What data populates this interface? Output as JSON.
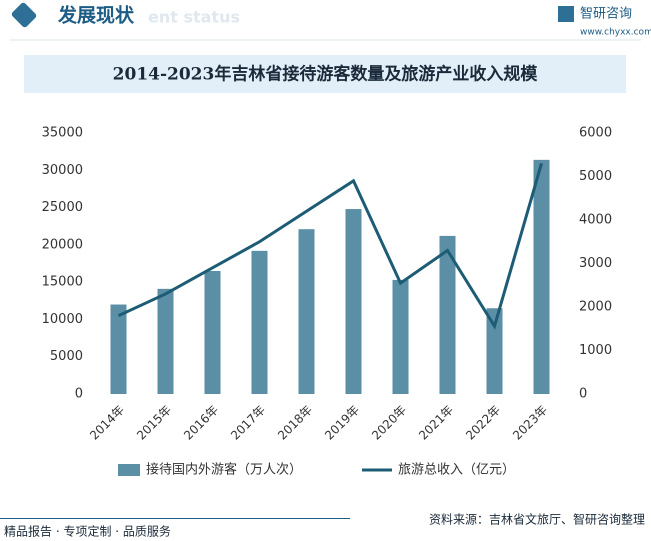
{
  "header": {
    "title": "发展现状",
    "subtitle": "ent status",
    "logo": "智研咨询",
    "url": "www.chyxx.com"
  },
  "chart_data": {
    "type": "bar-line",
    "title": "2014-2023年吉林省接待游客数量及旅游产业收入规模",
    "categories": [
      "2014年",
      "2015年",
      "2016年",
      "2017年",
      "2018年",
      "2019年",
      "2020年",
      "2021年",
      "2022年",
      "2023年"
    ],
    "series": [
      {
        "name": "接待国内外游客（万人次）",
        "color": "#5b8fa6",
        "type": "bar",
        "values": [
          12000,
          14100,
          16500,
          19200,
          22100,
          24800,
          15300,
          21200,
          11500,
          31400
        ]
      },
      {
        "name": "旅游总收入（亿元）",
        "color": "#1d5c75",
        "type": "line",
        "axis": "y2",
        "values": [
          1800,
          2300,
          2900,
          3500,
          4200,
          4900,
          2550,
          3300,
          1560,
          5300
        ]
      }
    ],
    "ylim": [
      0,
      35000
    ],
    "yticks": [
      0,
      5000,
      10000,
      15000,
      20000,
      25000,
      30000,
      35000
    ],
    "y2lim": [
      0,
      6000
    ],
    "y2ticks": [
      0,
      1000,
      2000,
      3000,
      4000,
      5000,
      6000
    ],
    "legend": "bottom"
  },
  "footer": {
    "left": "精品报告 · 专项定制 · 品质服务",
    "right": "资料来源：吉林省文旅厅、智研咨询整理"
  }
}
